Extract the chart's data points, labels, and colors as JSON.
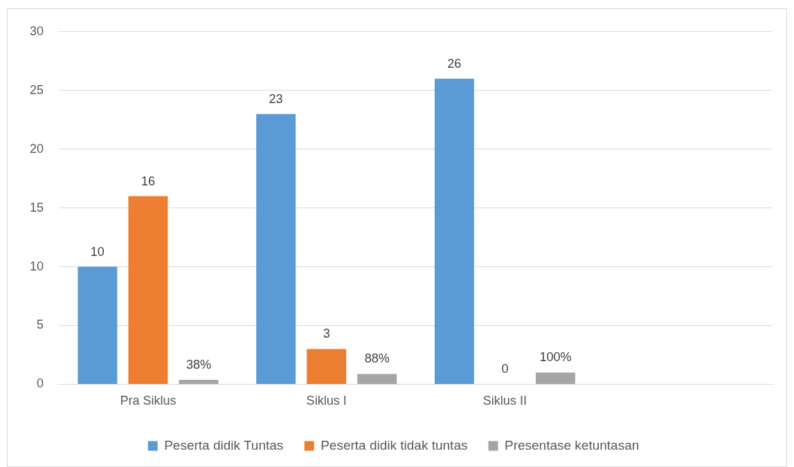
{
  "chart_data": {
    "type": "bar",
    "categories": [
      "Pra Siklus",
      "Siklus I",
      "Siklus II",
      null
    ],
    "series": [
      {
        "name": "Peserta didik Tuntas",
        "color": "#5b9bd5",
        "values": [
          10,
          23,
          26,
          null
        ],
        "value_labels": [
          "10",
          "23",
          "26",
          null
        ]
      },
      {
        "name": "Peserta didik tidak tuntas",
        "color": "#ed7d31",
        "values": [
          16,
          3,
          0,
          null
        ],
        "value_labels": [
          "16",
          "3",
          "0",
          null
        ]
      },
      {
        "name": "Presentase ketuntasan",
        "color": "#a5a5a5",
        "values": [
          0.38,
          0.88,
          1,
          null
        ],
        "value_labels": [
          "38%",
          "88%",
          "100%",
          null
        ]
      }
    ],
    "ylim": [
      0,
      30
    ],
    "yticks": [
      0,
      5,
      10,
      15,
      20,
      25,
      30
    ],
    "grid": "y",
    "legend": "bottom"
  }
}
